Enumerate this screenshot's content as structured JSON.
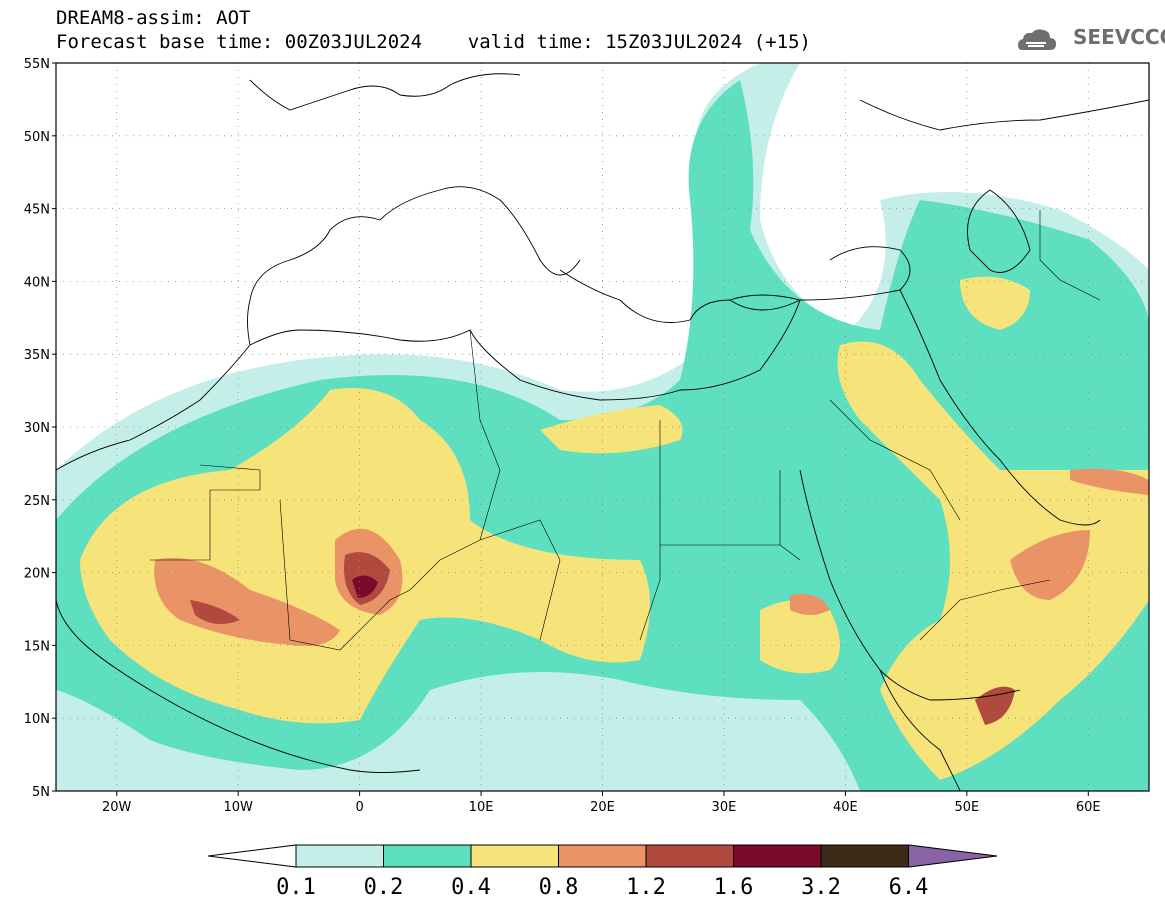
{
  "header": {
    "title_line1": "DREAM8-assim: AOT",
    "title_line2": "Forecast base time: 00Z03JUL2024    valid time: 15Z03JUL2024 (+15)"
  },
  "logo": {
    "text": "SEEVCCC",
    "icon": "cloud-icon",
    "color": "#6e6e6e"
  },
  "map": {
    "lat_range": [
      5,
      55
    ],
    "lon_range": [
      -25,
      65
    ],
    "lat_ticks": [
      {
        "value": 55,
        "label": "55N"
      },
      {
        "value": 50,
        "label": "50N"
      },
      {
        "value": 45,
        "label": "45N"
      },
      {
        "value": 40,
        "label": "40N"
      },
      {
        "value": 35,
        "label": "35N"
      },
      {
        "value": 30,
        "label": "30N"
      },
      {
        "value": 25,
        "label": "25N"
      },
      {
        "value": 20,
        "label": "20N"
      },
      {
        "value": 15,
        "label": "15N"
      },
      {
        "value": 10,
        "label": "10N"
      },
      {
        "value": 5,
        "label": "5N"
      }
    ],
    "lon_ticks": [
      {
        "value": -20,
        "label": "20W"
      },
      {
        "value": -10,
        "label": "10W"
      },
      {
        "value": 0,
        "label": "0"
      },
      {
        "value": 10,
        "label": "10E"
      },
      {
        "value": 20,
        "label": "20E"
      },
      {
        "value": 30,
        "label": "30E"
      },
      {
        "value": 40,
        "label": "40E"
      },
      {
        "value": 50,
        "label": "50E"
      },
      {
        "value": 60,
        "label": "60E"
      }
    ],
    "grid": true
  },
  "colorbar": {
    "labels": [
      "0.1",
      "0.2",
      "0.4",
      "0.8",
      "1.2",
      "1.6",
      "3.2",
      "6.4"
    ],
    "colors": [
      "#ffffff",
      "#c4efe9",
      "#5edfbf",
      "#f6e37a",
      "#ea9366",
      "#b04a3f",
      "#7a0a2c",
      "#3e2a18",
      "#8a62a6"
    ]
  }
}
